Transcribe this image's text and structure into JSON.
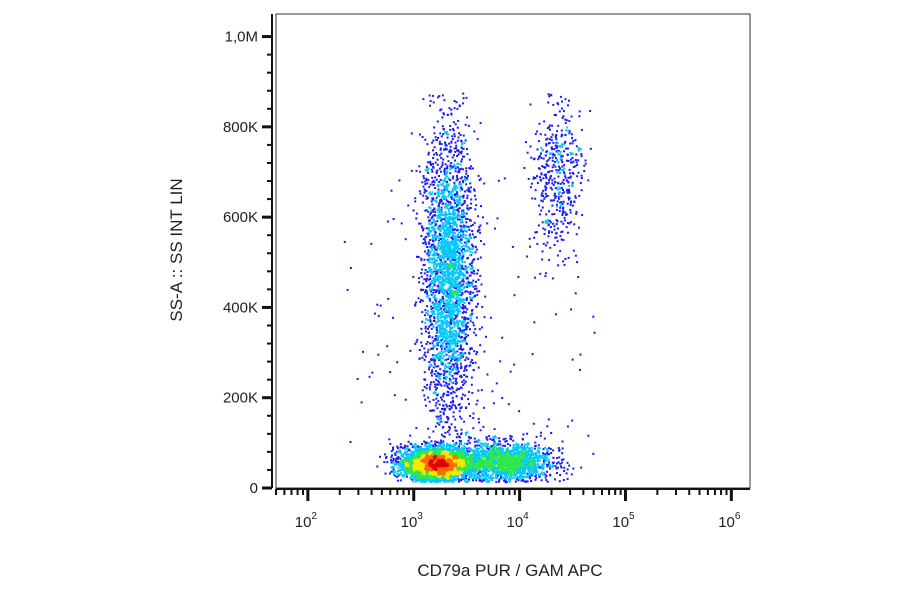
{
  "chart_data": {
    "type": "scatter",
    "subtype": "flow-cytometry-density-dot-plot",
    "title": "",
    "xlabel": "CD79a PUR / GAM APC",
    "ylabel": "SS-A :: SS INT LIN",
    "x_scale": "log",
    "y_scale": "linear",
    "xlim": [
      50,
      1500000
    ],
    "ylim": [
      0,
      1050000
    ],
    "x_ticks": [
      {
        "value": 100,
        "base": "10",
        "exp": "2"
      },
      {
        "value": 1000,
        "base": "10",
        "exp": "3"
      },
      {
        "value": 10000,
        "base": "10",
        "exp": "4"
      },
      {
        "value": 100000,
        "base": "10",
        "exp": "5"
      },
      {
        "value": 1000000,
        "base": "10",
        "exp": "6"
      }
    ],
    "y_ticks": [
      {
        "value": 0,
        "label": "0"
      },
      {
        "value": 200000,
        "label": "200K"
      },
      {
        "value": 400000,
        "label": "400K"
      },
      {
        "value": 600000,
        "label": "600K"
      },
      {
        "value": 800000,
        "label": "800K"
      },
      {
        "value": 1000000,
        "label": "1,0M"
      }
    ],
    "grid": false,
    "legend": "none",
    "color_scale": [
      "#1a1aff",
      "#00c8ff",
      "#2ee84a",
      "#ffe600",
      "#ff6a00",
      "#e00000"
    ],
    "populations": [
      {
        "x_center": 1600,
        "y_center": 55000,
        "x_spread_decades": 0.16,
        "y_spread": 18000,
        "density": 1.0
      },
      {
        "x_center": 2100,
        "y_center": 470000,
        "x_spread_decades": 0.12,
        "y_spread": 160000,
        "density": 0.75
      },
      {
        "x_center": 7000,
        "y_center": 60000,
        "x_spread_decades": 0.22,
        "y_spread": 22000,
        "density": 0.45
      },
      {
        "x_center": 22000,
        "y_center": 700000,
        "x_spread_decades": 0.12,
        "y_spread": 90000,
        "density": 0.12
      }
    ]
  }
}
